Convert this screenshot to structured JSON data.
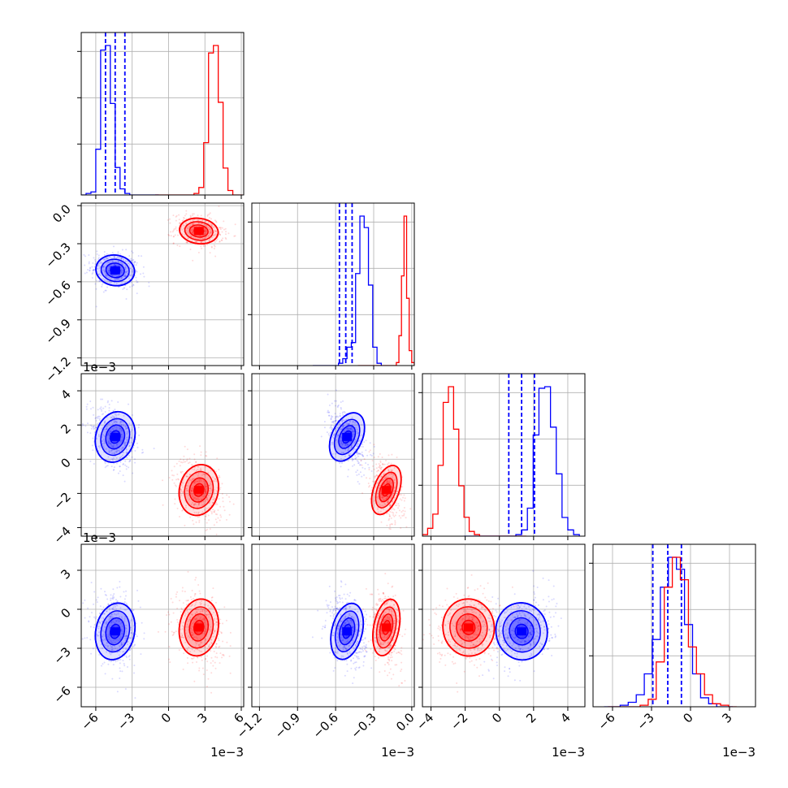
{
  "colors": {
    "blue": "#0000ff",
    "red": "#ff0000",
    "grid": "#b0b0b0",
    "axes": "#000000"
  },
  "chart_data": {
    "type": "corner",
    "grid": true,
    "parameters": [
      {
        "range": [
          -7.2,
          6.2
        ],
        "ticks": [
          -6,
          -3,
          0,
          3,
          6
        ],
        "tick_labels": [
          "−6",
          "−3",
          "0",
          "3",
          "6"
        ],
        "offset_label": "1e−3"
      },
      {
        "range": [
          -1.26,
          0.02
        ],
        "ticks": [
          -1.2,
          -0.9,
          -0.6,
          -0.3,
          0.0
        ],
        "tick_labels": [
          "−1.2",
          "−0.9",
          "−0.6",
          "−0.3",
          "0.0"
        ],
        "offset_label": "1e−3"
      },
      {
        "range": [
          -4.5,
          5.0
        ],
        "ticks": [
          -4,
          -2,
          0,
          2,
          4
        ],
        "tick_labels": [
          "−4",
          "−2",
          "0",
          "2",
          "4"
        ],
        "offset_label": "1e−3"
      },
      {
        "range": [
          -7.5,
          5.0
        ],
        "ticks": [
          -6,
          -3,
          0,
          3
        ],
        "tick_labels": [
          "−6",
          "−3",
          "0",
          "3"
        ],
        "offset_label": "1e−3"
      }
    ],
    "series": [
      {
        "color": "blue",
        "centers": [
          -4.4,
          -0.51,
          1.3,
          -1.7
        ],
        "sigmas": [
          0.8,
          0.06,
          0.75,
          1.1
        ],
        "quantiles": [
          [
            -5.2,
            -4.4,
            -3.6
          ],
          [
            -0.57,
            -0.52,
            -0.47
          ],
          [
            0.55,
            1.3,
            2.05
          ],
          [
            -2.9,
            -1.75,
            -0.7
          ]
        ],
        "hist1d": [
          [
            0,
            1,
            2,
            30,
            95,
            98,
            60,
            18,
            4,
            1,
            0,
            0,
            0,
            0,
            0,
            0
          ],
          [
            0,
            0,
            0,
            0,
            0,
            0,
            1,
            3,
            8,
            10,
            40,
            65,
            60,
            35,
            8,
            1
          ],
          [
            0,
            0,
            0,
            0,
            0,
            0,
            0,
            0,
            0,
            1,
            4,
            18,
            65,
            95,
            96,
            70,
            40,
            12,
            4,
            1
          ],
          [
            0,
            0,
            1,
            3,
            8,
            22,
            45,
            80,
            100,
            92,
            55,
            22,
            6,
            2,
            0,
            0
          ]
        ]
      },
      {
        "color": "red",
        "centers": [
          2.5,
          -0.2,
          -1.8,
          -1.4
        ],
        "sigmas": [
          0.8,
          0.05,
          0.75,
          1.1
        ],
        "hist1d": [
          [
            0,
            0,
            0,
            0,
            0,
            0,
            0,
            0,
            1,
            5,
            35,
            95,
            100,
            62,
            18,
            3,
            0,
            0
          ],
          [
            0,
            0,
            0,
            0,
            0,
            0,
            0,
            0,
            0,
            0,
            0,
            0,
            0,
            0,
            0,
            2,
            20,
            60,
            100,
            45,
            10,
            2
          ],
          [
            1,
            5,
            14,
            45,
            85,
            95,
            68,
            32,
            12,
            3,
            1,
            0,
            0,
            0,
            0,
            0,
            0,
            0,
            0,
            0
          ],
          [
            0,
            0,
            0,
            0,
            1,
            5,
            30,
            80,
            100,
            85,
            40,
            22,
            8,
            2,
            1,
            0
          ]
        ]
      }
    ]
  }
}
